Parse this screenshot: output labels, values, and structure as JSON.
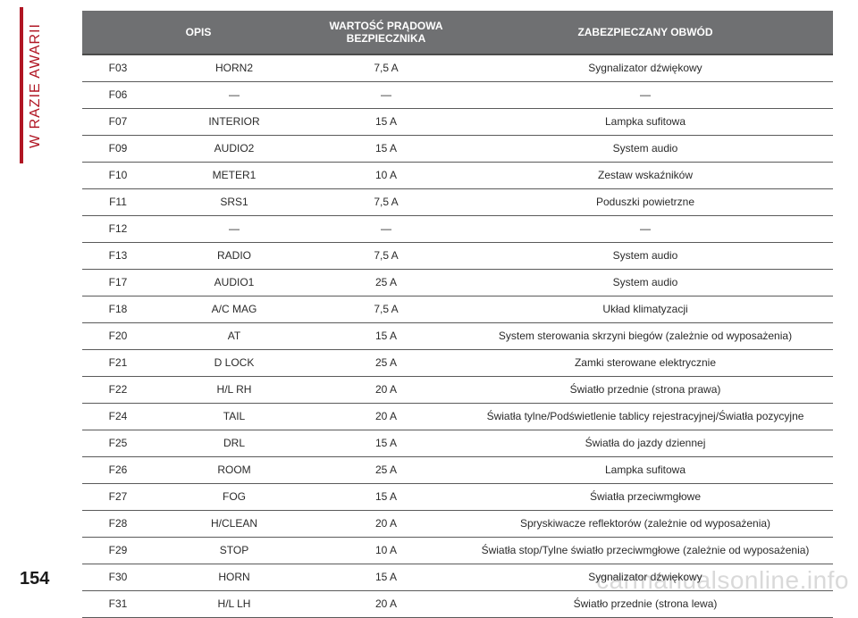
{
  "sideLabel": "W RAZIE AWARII",
  "pageNumber": "154",
  "watermark": "carmanualsonline.info",
  "colors": {
    "accent": "#b01523",
    "headerBg": "#6f7072",
    "headerText": "#ffffff",
    "rowBorder": "#5a5a5a",
    "bodyText": "#2a2a2a",
    "watermark": "#d9d9d9"
  },
  "table": {
    "headers": {
      "opis": "OPIS",
      "wartosc": "WARTOŚĆ PRĄDOWA BEZPIECZNIKA",
      "zabezp": "ZABEZPIECZANY OBWÓD"
    },
    "rows": [
      {
        "code": "F03",
        "name": "HORN2",
        "value": "7,5 A",
        "circuit": "Sygnalizator dźwiękowy"
      },
      {
        "code": "F06",
        "name": "—",
        "value": "—",
        "circuit": "—"
      },
      {
        "code": "F07",
        "name": "INTERIOR",
        "value": "15 A",
        "circuit": "Lampka sufitowa"
      },
      {
        "code": "F09",
        "name": "AUDIO2",
        "value": "15 A",
        "circuit": "System audio"
      },
      {
        "code": "F10",
        "name": "METER1",
        "value": "10 A",
        "circuit": "Zestaw wskaźników"
      },
      {
        "code": "F11",
        "name": "SRS1",
        "value": "7,5 A",
        "circuit": "Poduszki powietrzne"
      },
      {
        "code": "F12",
        "name": "—",
        "value": "—",
        "circuit": "—"
      },
      {
        "code": "F13",
        "name": "RADIO",
        "value": "7,5 A",
        "circuit": "System audio"
      },
      {
        "code": "F17",
        "name": "AUDIO1",
        "value": "25 A",
        "circuit": "System audio"
      },
      {
        "code": "F18",
        "name": "A/C MAG",
        "value": "7,5 A",
        "circuit": "Układ klimatyzacji"
      },
      {
        "code": "F20",
        "name": "AT",
        "value": "15 A",
        "circuit": "System sterowania skrzyni biegów (zależnie od wyposażenia)"
      },
      {
        "code": "F21",
        "name": "D LOCK",
        "value": "25 A",
        "circuit": "Zamki sterowane elektrycznie"
      },
      {
        "code": "F22",
        "name": "H/L RH",
        "value": "20 A",
        "circuit": "Światło przednie (strona prawa)"
      },
      {
        "code": "F24",
        "name": "TAIL",
        "value": "20 A",
        "circuit": "Światła tylne/Podświetlenie tablicy rejestracyjnej/Światła pozycyjne"
      },
      {
        "code": "F25",
        "name": "DRL",
        "value": "15 A",
        "circuit": "Światła do jazdy dziennej"
      },
      {
        "code": "F26",
        "name": "ROOM",
        "value": "25 A",
        "circuit": "Lampka sufitowa"
      },
      {
        "code": "F27",
        "name": "FOG",
        "value": "15 A",
        "circuit": "Światła przeciwmgłowe"
      },
      {
        "code": "F28",
        "name": "H/CLEAN",
        "value": "20 A",
        "circuit": "Spryskiwacze reflektorów (zależnie od wyposażenia)"
      },
      {
        "code": "F29",
        "name": "STOP",
        "value": "10 A",
        "circuit": "Światła stop/Tylne światło przeciwmgłowe (zależnie od wyposażenia)"
      },
      {
        "code": "F30",
        "name": "HORN",
        "value": "15 A",
        "circuit": "Sygnalizator dźwiękowy"
      },
      {
        "code": "F31",
        "name": "H/L LH",
        "value": "20 A",
        "circuit": "Światło przednie (strona lewa)"
      }
    ]
  }
}
